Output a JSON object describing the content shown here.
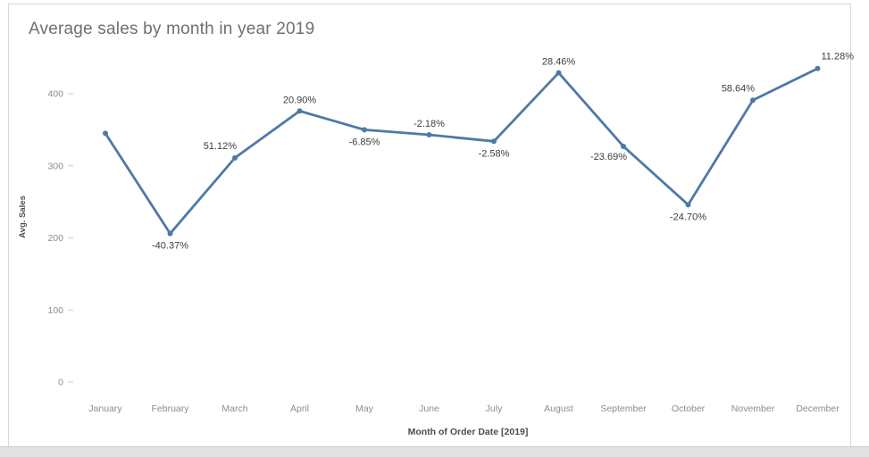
{
  "title": "Average sales by month in year 2019",
  "chart_data": {
    "type": "line",
    "title": "Average sales by month in year 2019",
    "xlabel": "Month of Order Date [2019]",
    "ylabel": "Avg. Sales",
    "categories": [
      "January",
      "February",
      "March",
      "April",
      "May",
      "June",
      "July",
      "August",
      "September",
      "October",
      "November",
      "December"
    ],
    "values": [
      345,
      206,
      311,
      376,
      350,
      343,
      334,
      429,
      327,
      246,
      391,
      435
    ],
    "point_labels": [
      "",
      "-40.37%",
      "51.12%",
      "20.90%",
      "-6.85%",
      "-2.18%",
      "-2.58%",
      "28.46%",
      "-23.69%",
      "-24.70%",
      "58.64%",
      "11.28%"
    ],
    "label_positions": [
      null,
      "below",
      "above-left",
      "above",
      "below",
      "above",
      "below",
      "above",
      "below-left",
      "below",
      "above-left",
      "above-right"
    ],
    "y_ticks": [
      0,
      100,
      200,
      300,
      400
    ],
    "ylim": [
      0,
      460
    ],
    "grid": false,
    "legend": "none",
    "line_color": "#4e79a7",
    "label_color": "#3d3d3d",
    "axis_text_color": "#8c8c8c",
    "axis_title_color": "#4d4d4d",
    "title_color": "#6f6f6f"
  }
}
